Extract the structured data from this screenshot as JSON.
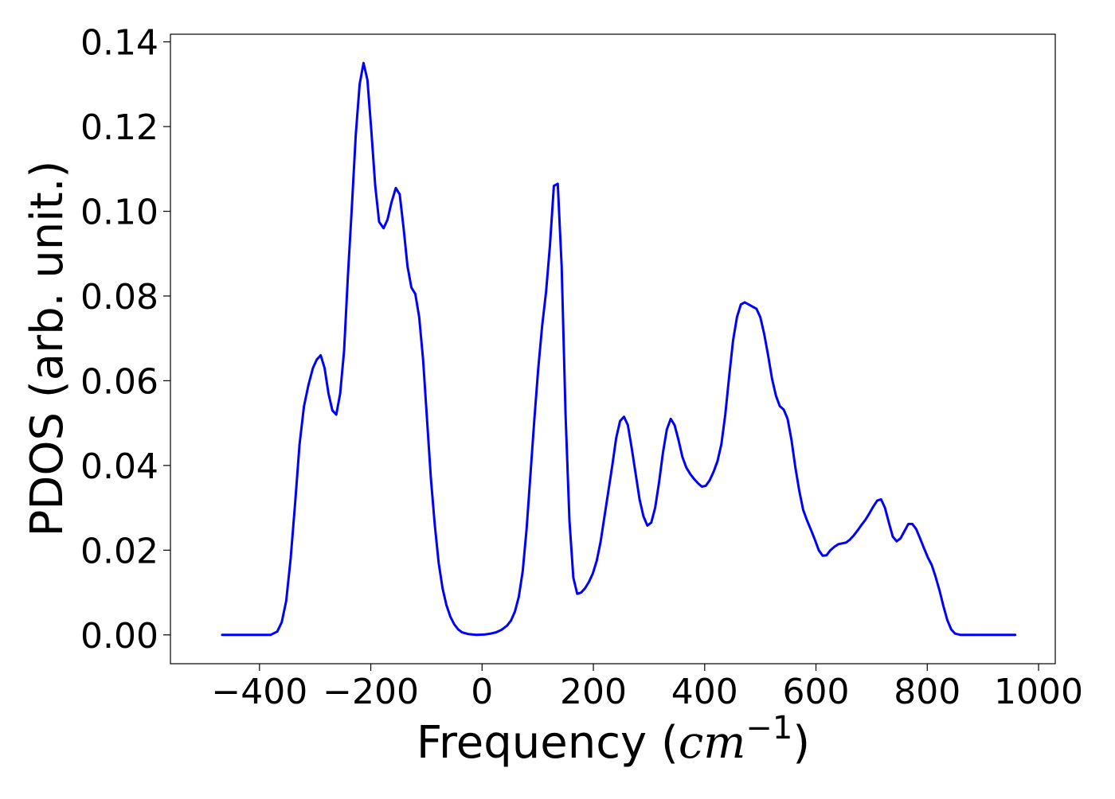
{
  "chart_data": {
    "type": "line",
    "title": "",
    "xlabel": "Frequency (",
    "xlabel_math": "cm",
    "xlabel_exp": "−1",
    "xlabel_end": ")",
    "ylabel": "PDOS (arb. unit.)",
    "xlim": [
      -560,
      1030
    ],
    "ylim": [
      -0.0068,
      0.1418
    ],
    "xticks": [
      -400,
      -200,
      0,
      200,
      400,
      600,
      800,
      1000
    ],
    "xtick_labels": [
      "−400",
      "−200",
      "0",
      "200",
      "400",
      "600",
      "800",
      "1000"
    ],
    "yticks": [
      0.0,
      0.02,
      0.04,
      0.06,
      0.08,
      0.1,
      0.12,
      0.14
    ],
    "ytick_labels": [
      "0.00",
      "0.02",
      "0.04",
      "0.06",
      "0.08",
      "0.10",
      "0.12",
      "0.14"
    ],
    "grid": false,
    "series": [
      {
        "color": "#0000ff",
        "points": [
          [
            -467,
            0.0
          ],
          [
            -380,
            0.0
          ],
          [
            -368,
            0.0008
          ],
          [
            -360,
            0.003
          ],
          [
            -352,
            0.008
          ],
          [
            -344,
            0.018
          ],
          [
            -336,
            0.031
          ],
          [
            -328,
            0.045
          ],
          [
            -320,
            0.054
          ],
          [
            -312,
            0.059
          ],
          [
            -304,
            0.063
          ],
          [
            -297,
            0.065
          ],
          [
            -290,
            0.066
          ],
          [
            -283,
            0.063
          ],
          [
            -276,
            0.057
          ],
          [
            -269,
            0.053
          ],
          [
            -262,
            0.052
          ],
          [
            -255,
            0.057
          ],
          [
            -248,
            0.067
          ],
          [
            -241,
            0.085
          ],
          [
            -234,
            0.101
          ],
          [
            -227,
            0.118
          ],
          [
            -220,
            0.13
          ],
          [
            -213,
            0.135
          ],
          [
            -206,
            0.131
          ],
          [
            -199,
            0.119
          ],
          [
            -192,
            0.106
          ],
          [
            -185,
            0.0975
          ],
          [
            -177,
            0.096
          ],
          [
            -170,
            0.098
          ],
          [
            -163,
            0.102
          ],
          [
            -155,
            0.1055
          ],
          [
            -148,
            0.104
          ],
          [
            -141,
            0.096
          ],
          [
            -134,
            0.087
          ],
          [
            -127,
            0.082
          ],
          [
            -120,
            0.0805
          ],
          [
            -113,
            0.075
          ],
          [
            -106,
            0.065
          ],
          [
            -99,
            0.051
          ],
          [
            -92,
            0.037
          ],
          [
            -85,
            0.026
          ],
          [
            -78,
            0.017
          ],
          [
            -71,
            0.011
          ],
          [
            -64,
            0.007
          ],
          [
            -57,
            0.0043
          ],
          [
            -50,
            0.0025
          ],
          [
            -43,
            0.0013
          ],
          [
            -36,
            0.0006
          ],
          [
            -25,
            0.0002
          ],
          [
            -10,
            0.0
          ],
          [
            5,
            0.0001
          ],
          [
            15,
            0.0003
          ],
          [
            25,
            0.0006
          ],
          [
            35,
            0.0012
          ],
          [
            45,
            0.0022
          ],
          [
            52,
            0.0034
          ],
          [
            59,
            0.0055
          ],
          [
            66,
            0.009
          ],
          [
            73,
            0.015
          ],
          [
            80,
            0.025
          ],
          [
            87,
            0.038
          ],
          [
            94,
            0.051
          ],
          [
            101,
            0.063
          ],
          [
            108,
            0.073
          ],
          [
            115,
            0.081
          ],
          [
            122,
            0.092
          ],
          [
            129,
            0.106
          ],
          [
            136,
            0.1065
          ],
          [
            143,
            0.087
          ],
          [
            150,
            0.052
          ],
          [
            157,
            0.027
          ],
          [
            164,
            0.0135
          ],
          [
            171,
            0.0097
          ],
          [
            178,
            0.01
          ],
          [
            185,
            0.011
          ],
          [
            192,
            0.0125
          ],
          [
            199,
            0.0145
          ],
          [
            206,
            0.0175
          ],
          [
            213,
            0.022
          ],
          [
            220,
            0.028
          ],
          [
            227,
            0.034
          ],
          [
            234,
            0.04
          ],
          [
            241,
            0.0465
          ],
          [
            248,
            0.0505
          ],
          [
            255,
            0.0515
          ],
          [
            262,
            0.0495
          ],
          [
            269,
            0.044
          ],
          [
            276,
            0.038
          ],
          [
            283,
            0.032
          ],
          [
            290,
            0.028
          ],
          [
            297,
            0.0258
          ],
          [
            304,
            0.0265
          ],
          [
            311,
            0.03
          ],
          [
            318,
            0.036
          ],
          [
            325,
            0.043
          ],
          [
            332,
            0.0485
          ],
          [
            339,
            0.051
          ],
          [
            346,
            0.0495
          ],
          [
            353,
            0.046
          ],
          [
            360,
            0.042
          ],
          [
            367,
            0.0395
          ],
          [
            374,
            0.038
          ],
          [
            381,
            0.0368
          ],
          [
            388,
            0.0358
          ],
          [
            395,
            0.035
          ],
          [
            402,
            0.0352
          ],
          [
            409,
            0.0365
          ],
          [
            416,
            0.0385
          ],
          [
            423,
            0.041
          ],
          [
            430,
            0.045
          ],
          [
            437,
            0.052
          ],
          [
            444,
            0.061
          ],
          [
            451,
            0.0695
          ],
          [
            458,
            0.075
          ],
          [
            465,
            0.078
          ],
          [
            472,
            0.0785
          ],
          [
            479,
            0.078
          ],
          [
            486,
            0.0775
          ],
          [
            493,
            0.077
          ],
          [
            500,
            0.075
          ],
          [
            507,
            0.071
          ],
          [
            514,
            0.066
          ],
          [
            521,
            0.0605
          ],
          [
            528,
            0.0565
          ],
          [
            535,
            0.054
          ],
          [
            542,
            0.0532
          ],
          [
            549,
            0.051
          ],
          [
            556,
            0.046
          ],
          [
            563,
            0.0395
          ],
          [
            570,
            0.034
          ],
          [
            577,
            0.0295
          ],
          [
            584,
            0.027
          ],
          [
            591,
            0.0248
          ],
          [
            598,
            0.0225
          ],
          [
            605,
            0.02
          ],
          [
            612,
            0.0187
          ],
          [
            619,
            0.0188
          ],
          [
            626,
            0.02
          ],
          [
            633,
            0.0208
          ],
          [
            640,
            0.0214
          ],
          [
            647,
            0.0216
          ],
          [
            654,
            0.0218
          ],
          [
            661,
            0.0225
          ],
          [
            668,
            0.0235
          ],
          [
            675,
            0.0247
          ],
          [
            682,
            0.026
          ],
          [
            689,
            0.0272
          ],
          [
            696,
            0.0287
          ],
          [
            703,
            0.0303
          ],
          [
            710,
            0.0317
          ],
          [
            717,
            0.032
          ],
          [
            724,
            0.03
          ],
          [
            731,
            0.0265
          ],
          [
            738,
            0.0232
          ],
          [
            745,
            0.0221
          ],
          [
            752,
            0.0228
          ],
          [
            759,
            0.0245
          ],
          [
            766,
            0.0262
          ],
          [
            773,
            0.0262
          ],
          [
            780,
            0.025
          ],
          [
            787,
            0.0228
          ],
          [
            794,
            0.0205
          ],
          [
            801,
            0.0183
          ],
          [
            808,
            0.0165
          ],
          [
            815,
            0.0137
          ],
          [
            822,
            0.0105
          ],
          [
            829,
            0.0068
          ],
          [
            836,
            0.0035
          ],
          [
            843,
            0.0013
          ],
          [
            850,
            0.0003
          ],
          [
            860,
            0.0
          ],
          [
            900,
            0.0
          ],
          [
            958,
            0.0
          ]
        ]
      }
    ]
  }
}
